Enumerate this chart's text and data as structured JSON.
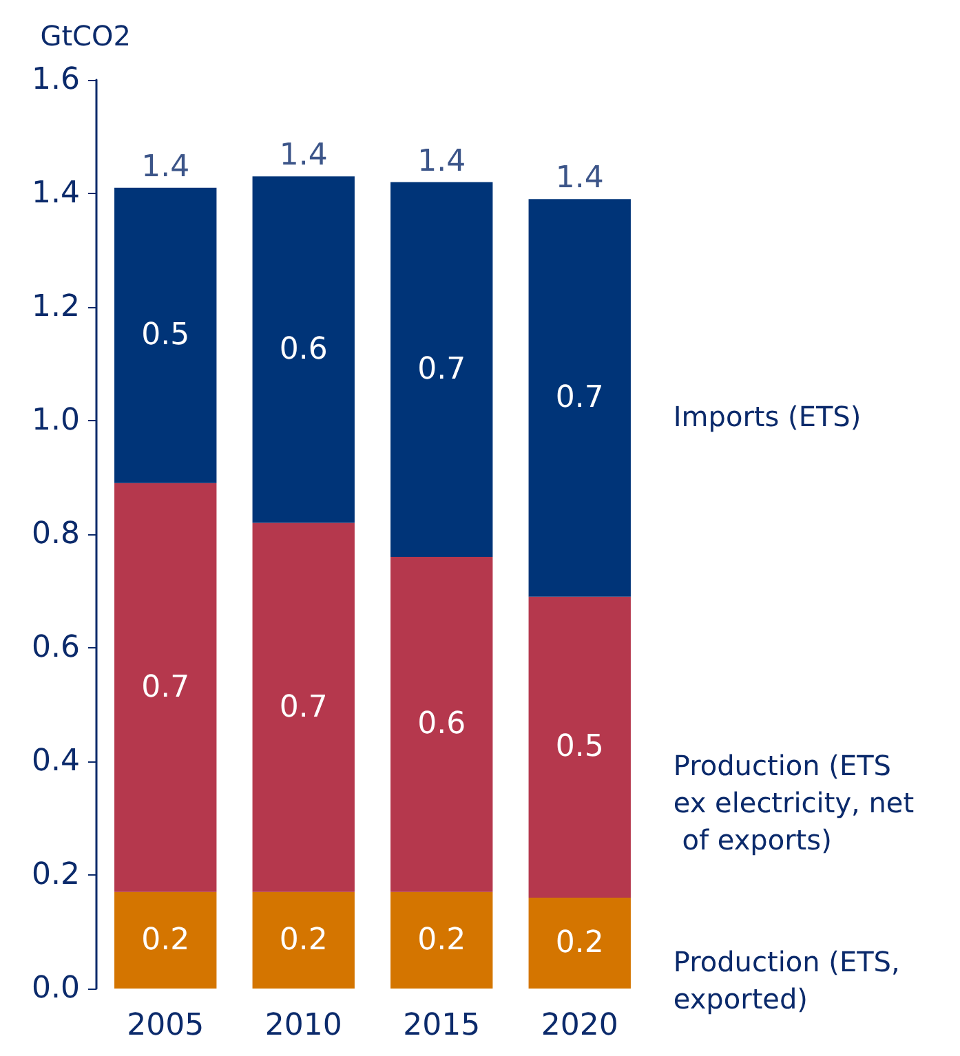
{
  "chart_data": {
    "type": "bar",
    "stacked": true,
    "ylabel": "GtCO2",
    "categories": [
      "2005",
      "2010",
      "2015",
      "2020"
    ],
    "series": [
      {
        "name": "Production (ETS, exported)",
        "color": "#d47500",
        "values": [
          0.17,
          0.17,
          0.17,
          0.16
        ],
        "value_labels": [
          "0.2",
          "0.2",
          "0.2",
          "0.2"
        ]
      },
      {
        "name": "Production (ETS ex electricity, net of exports)",
        "color": "#b5384d",
        "values": [
          0.72,
          0.65,
          0.59,
          0.53
        ],
        "value_labels": [
          "0.7",
          "0.7",
          "0.6",
          "0.5"
        ]
      },
      {
        "name": "Imports (ETS)",
        "color": "#003478",
        "values": [
          0.52,
          0.61,
          0.66,
          0.7
        ],
        "value_labels": [
          "0.5",
          "0.6",
          "0.7",
          "0.7"
        ]
      }
    ],
    "totals": [
      "1.4",
      "1.4",
      "1.4",
      "1.4"
    ],
    "ylim": [
      0,
      1.6
    ],
    "yticks": [
      {
        "value": 0,
        "label": "0.0"
      },
      {
        "value": 0.2,
        "label": "0.2"
      },
      {
        "value": 0.4,
        "label": "0.4"
      },
      {
        "value": 0.6,
        "label": "0.6"
      },
      {
        "value": 0.8,
        "label": "0.8"
      },
      {
        "value": 1,
        "label": "1.0"
      },
      {
        "value": 1.2,
        "label": "1.2"
      },
      {
        "value": 1.4,
        "label": "1.4"
      },
      {
        "value": 1.6,
        "label": "1.6"
      }
    ],
    "grid": false
  }
}
